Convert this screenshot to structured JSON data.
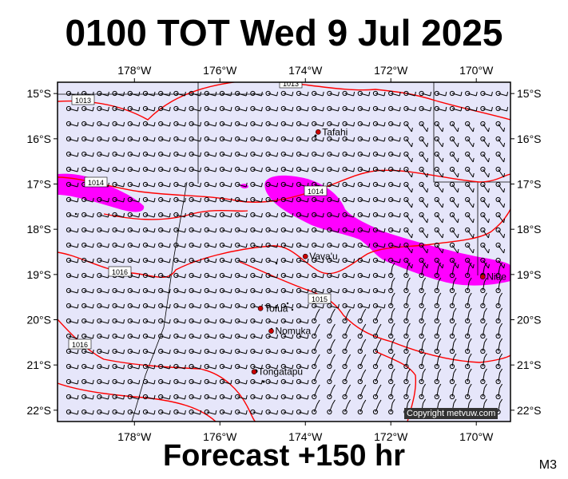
{
  "header": {
    "title": "0100 TOT Wed 9 Jul 2025"
  },
  "footer": {
    "forecast": "Forecast +150 hr",
    "code": "M3",
    "copyright": "Copyright metvuw.com"
  },
  "map": {
    "lon_labels": [
      "178°W",
      "176°W",
      "174°W",
      "172°W",
      "170°W"
    ],
    "lon_values": [
      -178,
      -176,
      -174,
      -172,
      -170
    ],
    "lat_labels": [
      "15°S",
      "16°S",
      "17°S",
      "18°S",
      "19°S",
      "20°S",
      "21°S",
      "22°S"
    ],
    "lat_values": [
      -15,
      -16,
      -17,
      -18,
      -19,
      -20,
      -21,
      -22
    ],
    "lon_range": [
      -179.8,
      -169.2
    ],
    "lat_range": [
      -14.75,
      -22.25
    ],
    "isobar_labels": [
      "1013",
      "1013",
      "1014",
      "1014",
      "1016",
      "1015",
      "1016"
    ],
    "places": [
      {
        "name": "Tafahi",
        "lon": -173.7,
        "lat": -15.85
      },
      {
        "name": "Vava'u",
        "lon": -174.0,
        "lat": -18.6
      },
      {
        "name": "Niue",
        "lon": -169.85,
        "lat": -19.05
      },
      {
        "name": "Tofua",
        "lon": -175.05,
        "lat": -19.75
      },
      {
        "name": "Nomuka",
        "lon": -174.8,
        "lat": -20.25
      },
      {
        "name": "Tongatapu",
        "lon": -175.2,
        "lat": -21.15
      }
    ],
    "colors": {
      "ocean": "#e6e6fa",
      "isobar": "#ff0000",
      "rain": "#ff00ff",
      "place": "#cc0000"
    }
  }
}
